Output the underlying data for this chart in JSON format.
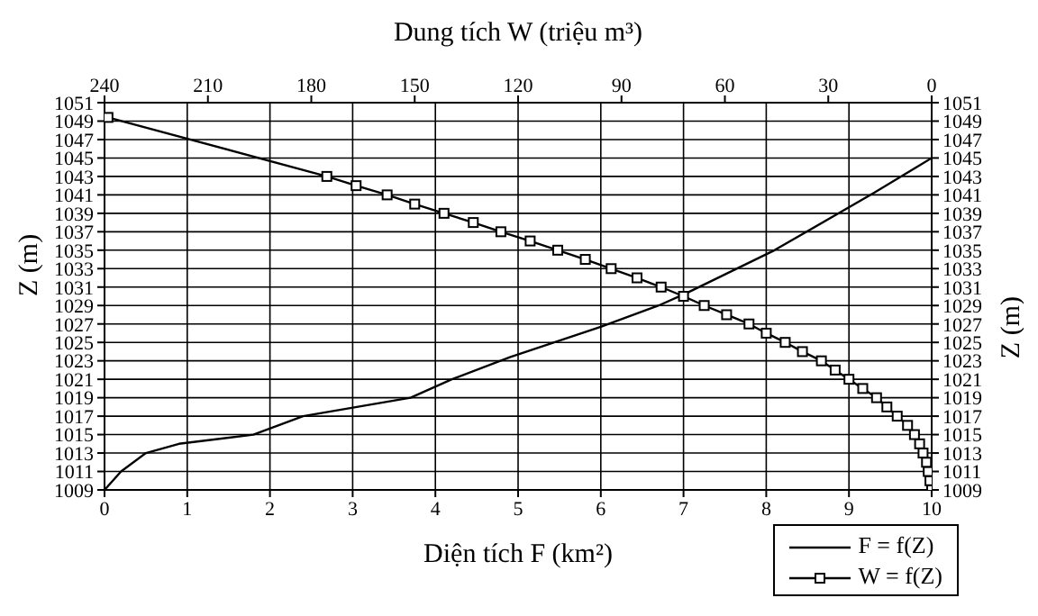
{
  "chart_data": {
    "type": "line",
    "xlabel": "Diện tích F (km²)",
    "x2label": "Dung tích W (triệu m³)",
    "ylabel": "Z (m)",
    "y2label": "Z (m)",
    "xlim": [
      0,
      10
    ],
    "xticks": [
      0,
      1,
      2,
      3,
      4,
      5,
      6,
      7,
      8,
      9,
      10
    ],
    "x2lim": [
      240,
      0
    ],
    "x2ticks": [
      240,
      210,
      180,
      150,
      120,
      90,
      60,
      30,
      0
    ],
    "ylim": [
      1009,
      1051
    ],
    "yticks": [
      1009,
      1011,
      1013,
      1015,
      1017,
      1019,
      1021,
      1023,
      1025,
      1027,
      1029,
      1031,
      1033,
      1035,
      1037,
      1039,
      1041,
      1043,
      1045,
      1047,
      1049,
      1051
    ],
    "y2lim": [
      1009,
      1051
    ],
    "y2ticks": [
      1009,
      1011,
      1013,
      1015,
      1017,
      1019,
      1021,
      1023,
      1025,
      1027,
      1029,
      1031,
      1033,
      1035,
      1037,
      1039,
      1041,
      1043,
      1045,
      1047,
      1049,
      1051
    ],
    "grid": true,
    "legend": "bottom right",
    "line_style": "solid",
    "series": [
      {
        "name": "F = f(Z)",
        "color": "#000000",
        "marker": "none",
        "x": [
          0,
          0.2,
          0.5,
          0.9,
          1.8,
          2.4,
          3.05,
          3.7,
          4.2,
          4.9,
          6,
          6.7,
          7.05,
          8.1,
          9.3,
          10
        ],
        "values": [
          1009,
          1011,
          1013,
          1014,
          1015,
          1017,
          1018,
          1019,
          1021,
          1023.4,
          1026.7,
          1029,
          1030.4,
          1035,
          1041.2,
          1045
        ]
      },
      {
        "name": "W = f(Z)",
        "color": "#000000",
        "marker": "square",
        "axis": "x2",
        "x": [
          0,
          0.5,
          1,
          1.5,
          2.5,
          3.5,
          5,
          7,
          10,
          13,
          16,
          20,
          24,
          28,
          32,
          37.5,
          42.5,
          48,
          53,
          59.5,
          66,
          72,
          78.5,
          85.5,
          93,
          100.5,
          108.5,
          116.5,
          125,
          133,
          141.5,
          150,
          158,
          167,
          175.5,
          239
        ],
        "values": [
          1009,
          1010,
          1011,
          1012,
          1013,
          1014,
          1015,
          1016,
          1017,
          1018,
          1019,
          1020,
          1021,
          1022,
          1023,
          1024,
          1025,
          1026,
          1027,
          1028,
          1029,
          1030,
          1031,
          1032,
          1033,
          1034,
          1035,
          1036,
          1037,
          1038,
          1039,
          1040,
          1041,
          1042,
          1043,
          1049.4
        ]
      }
    ]
  }
}
